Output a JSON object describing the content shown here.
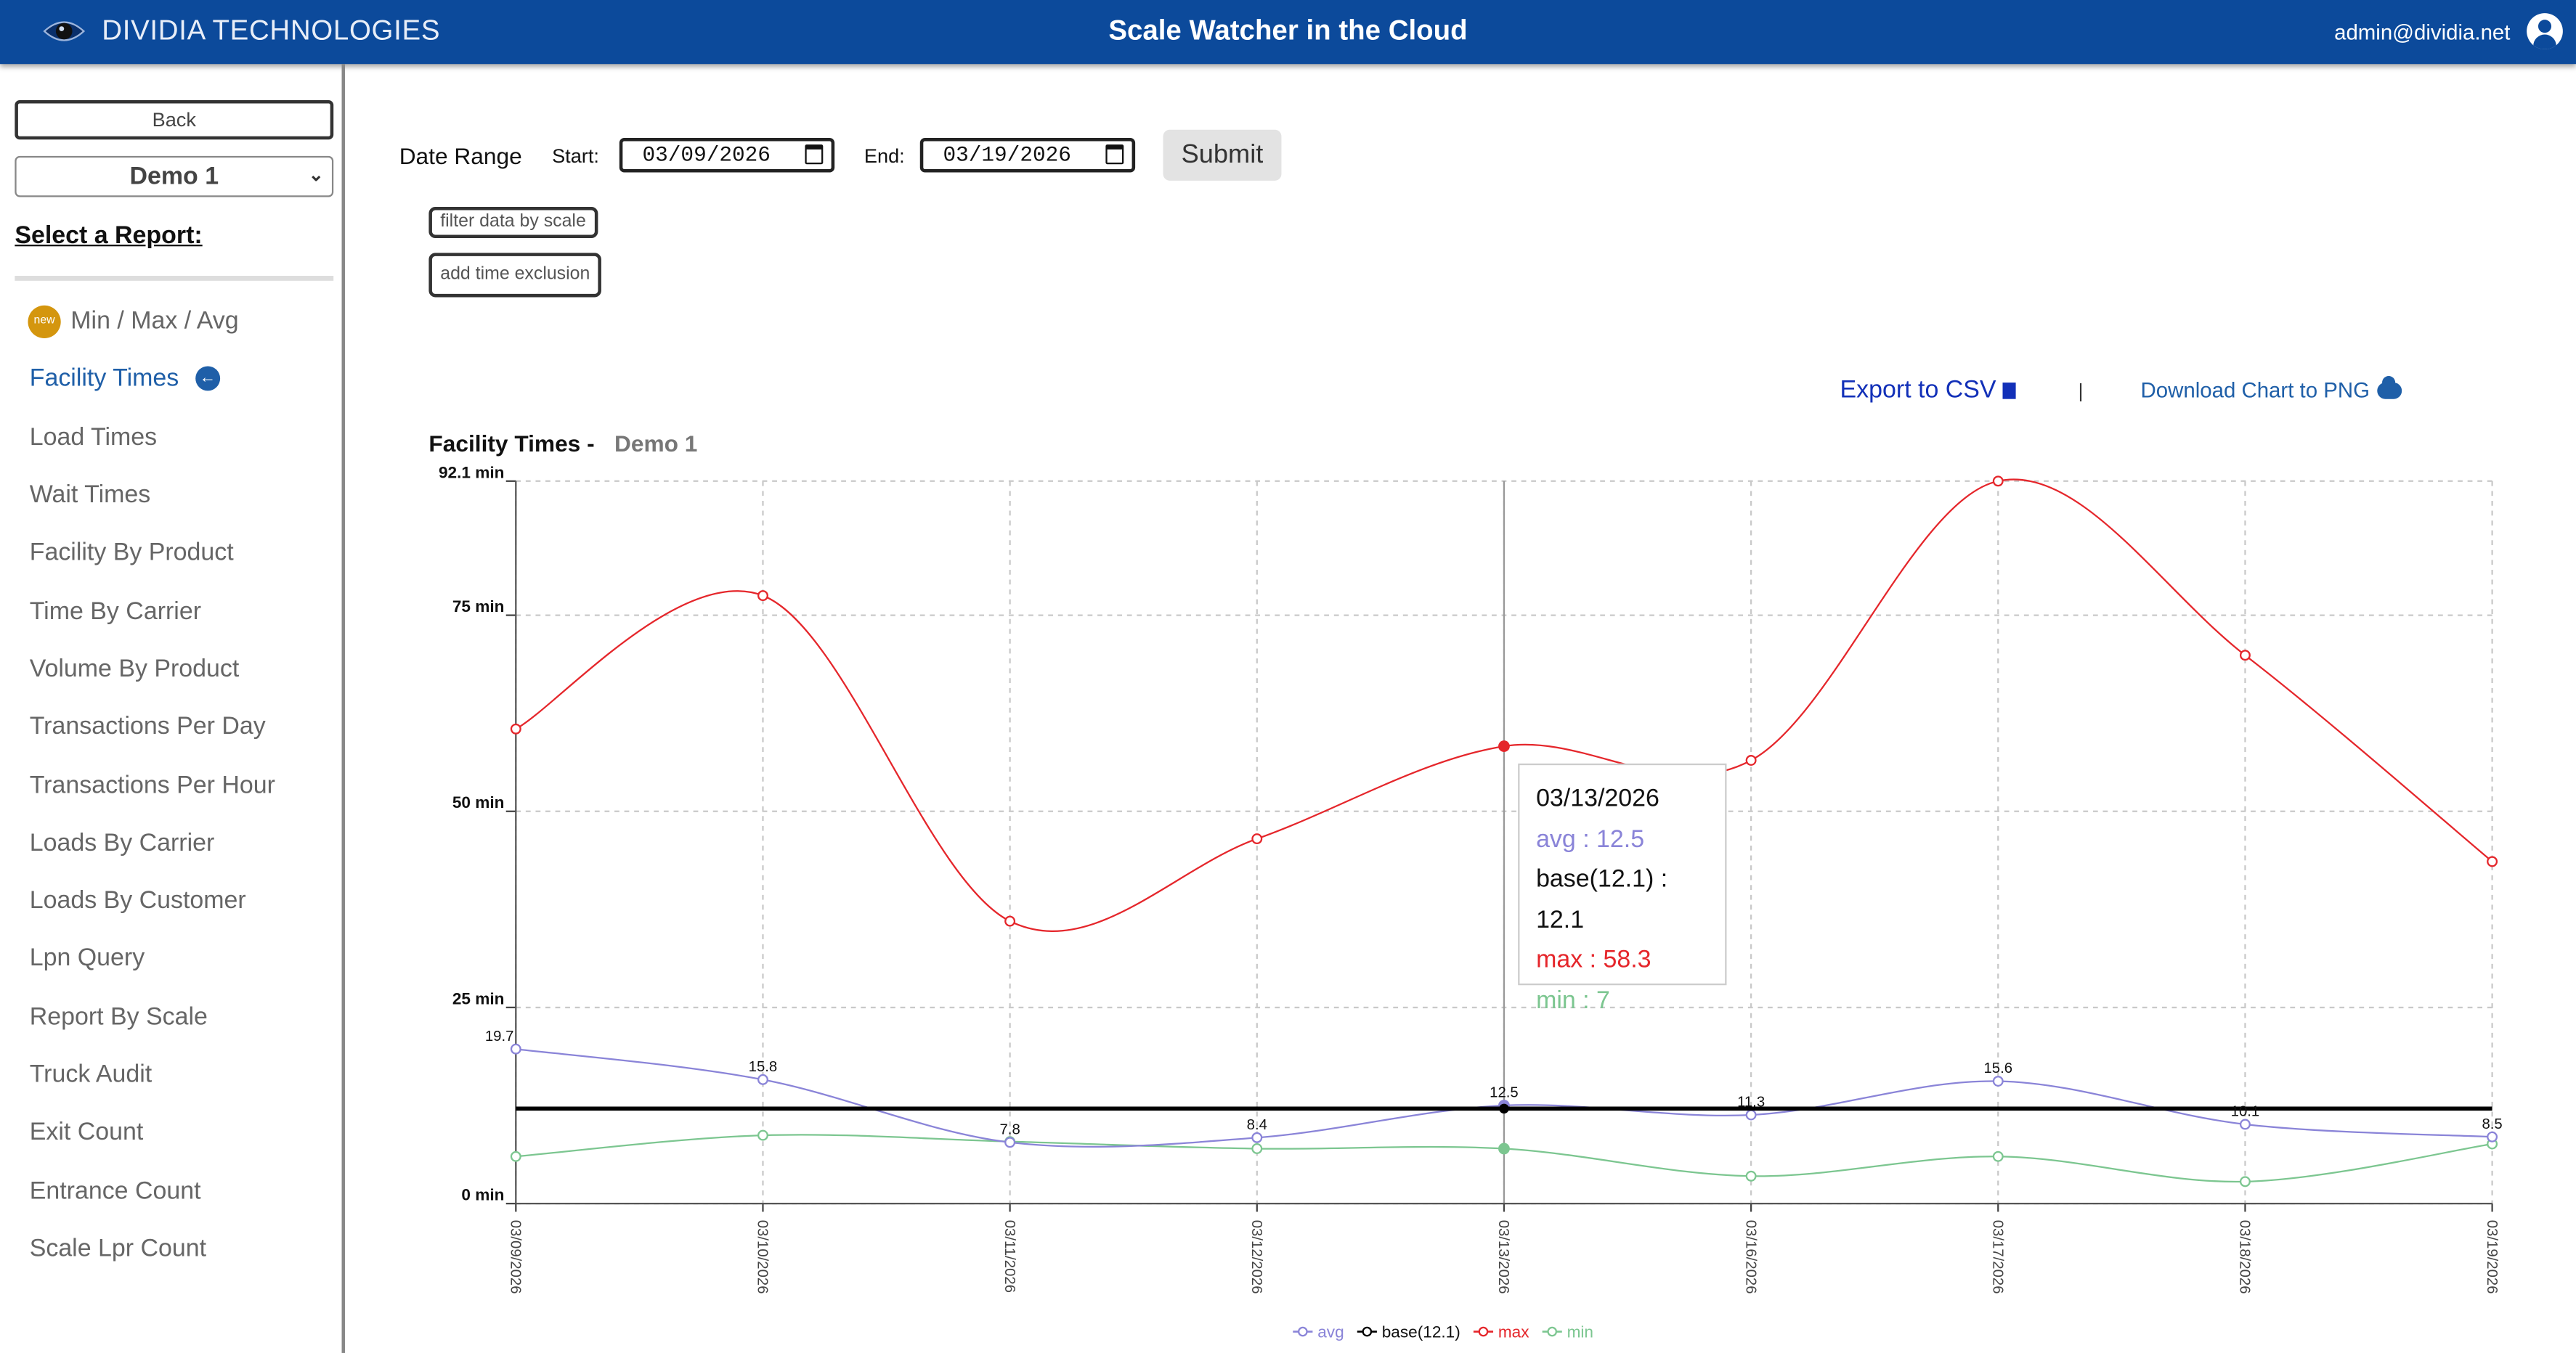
{
  "header": {
    "brand": "DIVIDIA TECHNOLOGIES",
    "title": "Scale Watcher in the Cloud",
    "user": "admin@dividia.net"
  },
  "sidebar": {
    "back_label": "Back",
    "site": "Demo 1",
    "select_report_label": "Select a Report:",
    "new_badge": "new",
    "items": [
      {
        "label": "Min / Max / Avg"
      },
      {
        "label": "Facility Times"
      },
      {
        "label": "Load Times"
      },
      {
        "label": "Wait Times"
      },
      {
        "label": "Facility By Product"
      },
      {
        "label": "Time By Carrier"
      },
      {
        "label": "Volume By Product"
      },
      {
        "label": "Transactions Per Day"
      },
      {
        "label": "Transactions Per Hour"
      },
      {
        "label": "Loads By Carrier"
      },
      {
        "label": "Loads By Customer"
      },
      {
        "label": "Lpn Query"
      },
      {
        "label": "Report By Scale"
      },
      {
        "label": "Truck Audit"
      },
      {
        "label": "Exit Count"
      },
      {
        "label": "Entrance Count"
      },
      {
        "label": "Scale Lpr Count"
      }
    ]
  },
  "filters": {
    "date_range_label": "Date Range",
    "start_label": "Start:",
    "start_value": "03/09/2026",
    "end_label": "End:",
    "end_value": "03/19/2026",
    "submit_label": "Submit",
    "filter_scale_label": "filter data by scale",
    "time_exclusion_label": "add time exclusion"
  },
  "export": {
    "csv_label": "Export to CSV",
    "divider": "|",
    "png_label": "Download Chart to PNG"
  },
  "chart_data": {
    "type": "line",
    "title": "Facility Times -",
    "subtitle": "Demo 1",
    "categories": [
      "03/09/2026",
      "03/10/2026",
      "03/11/2026",
      "03/12/2026",
      "03/13/2026",
      "03/16/2026",
      "03/17/2026",
      "03/18/2026",
      "03/19/2026"
    ],
    "y_ticks": [
      "0 min",
      "25 min",
      "50 min",
      "75 min",
      "92.1 min"
    ],
    "y_tick_values": [
      0,
      25,
      50,
      75,
      92.1
    ],
    "ylim": [
      0,
      92.1
    ],
    "grid": true,
    "legend_position": "bottom",
    "series": [
      {
        "name": "avg",
        "color": "#8a84d8",
        "values": [
          19.7,
          15.8,
          7.8,
          8.4,
          12.5,
          11.3,
          15.6,
          10.1,
          8.5
        ],
        "labels": [
          "19.7",
          "15.8",
          "7.8",
          "8.4",
          "12.5",
          "11.3",
          "15.6",
          "10.1",
          "8.5"
        ]
      },
      {
        "name": "base(12.1)",
        "color": "#000000",
        "values": [
          12.1,
          12.1,
          12.1,
          12.1,
          12.1,
          12.1,
          12.1,
          12.1,
          12.1
        ]
      },
      {
        "name": "max",
        "color": "#e5262b",
        "values": [
          60.5,
          77.5,
          36.0,
          46.5,
          58.3,
          56.5,
          92.1,
          69.9,
          43.6
        ]
      },
      {
        "name": "min",
        "color": "#7cc690",
        "values": [
          6.0,
          8.7,
          7.9,
          7.0,
          7.0,
          3.5,
          6.0,
          2.8,
          7.6
        ]
      }
    ],
    "tooltip": {
      "date": "03/13/2026",
      "avg": "avg : 12.5",
      "base": "base(12.1) : 12.1",
      "max": "max : 58.3",
      "min": "min : 7"
    }
  }
}
